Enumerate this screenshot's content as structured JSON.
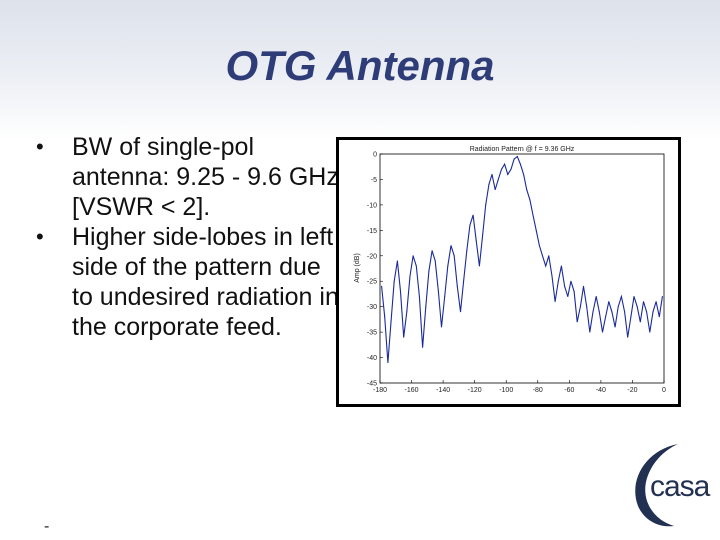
{
  "slide": {
    "title": "OTG Antenna",
    "bullets": [
      "BW of single-pol antenna: 9.25 - 9.6 GHz [VSWR < 2].",
      "Higher side-lobes in left side of the pattern due to undesired radiation in the corporate feed."
    ],
    "footer_dash": "-",
    "logo_text": "casa",
    "colors": {
      "title": "#2e3d78",
      "curve": "#1a2a9a",
      "logo": "#223052"
    }
  },
  "chart_data": {
    "type": "line",
    "title": "Radiation Pattern @ f = 9.36 GHz",
    "xlabel": "",
    "ylabel": "Amp (dB)",
    "xlim": [
      -180,
      0
    ],
    "ylim": [
      -45,
      0
    ],
    "x_ticks": [
      "-180",
      "-160",
      "-140",
      "-120",
      "-100",
      "-80",
      "-60",
      "-40",
      "-20",
      "0"
    ],
    "y_ticks": [
      "0",
      "-5",
      "-10",
      "-15",
      "-20",
      "-25",
      "-30",
      "-35",
      "-40",
      "-45"
    ],
    "grid": false,
    "series": [
      {
        "x": [
          -179,
          -177,
          -175,
          -173,
          -171,
          -169,
          -167,
          -165,
          -163,
          -161,
          -159,
          -157,
          -155,
          -153,
          -151,
          -149,
          -147,
          -145,
          -143,
          -141,
          -139,
          -137,
          -135,
          -133,
          -131,
          -129,
          -127,
          -125,
          -123,
          -121,
          -119,
          -117,
          -115,
          -113,
          -111,
          -109,
          -107,
          -105,
          -103,
          -101,
          -99,
          -97,
          -95,
          -93,
          -91,
          -89,
          -87,
          -85,
          -83,
          -81,
          -79,
          -77,
          -75,
          -73,
          -71,
          -69,
          -67,
          -65,
          -63,
          -61,
          -59,
          -57,
          -55,
          -53,
          -51,
          -49,
          -47,
          -45,
          -43,
          -41,
          -39,
          -37,
          -35,
          -33,
          -31,
          -29,
          -27,
          -25,
          -23,
          -21,
          -19,
          -17,
          -15,
          -13,
          -11,
          -9,
          -7,
          -5,
          -3,
          -1
        ],
        "y": [
          -26,
          -32,
          -41,
          -33,
          -25,
          -21,
          -27,
          -36,
          -31,
          -24,
          -20,
          -22,
          -28,
          -38,
          -30,
          -23,
          -19,
          -21,
          -27,
          -34,
          -28,
          -22,
          -18,
          -20,
          -26,
          -31,
          -25,
          -19,
          -14,
          -12,
          -17,
          -22,
          -16,
          -10,
          -6,
          -4,
          -7,
          -5,
          -3,
          -2,
          -4,
          -3,
          -1,
          -0.5,
          -2,
          -4,
          -7,
          -9,
          -12,
          -15,
          -18,
          -20,
          -22,
          -20,
          -24,
          -29,
          -25,
          -22,
          -26,
          -28,
          -25,
          -27,
          -33,
          -30,
          -26,
          -30,
          -35,
          -31,
          -28,
          -31,
          -35,
          -32,
          -29,
          -31,
          -34,
          -30,
          -28,
          -31,
          -36,
          -32,
          -28,
          -30,
          -33,
          -29,
          -31,
          -35,
          -31,
          -29,
          -32,
          -28
        ]
      }
    ]
  }
}
